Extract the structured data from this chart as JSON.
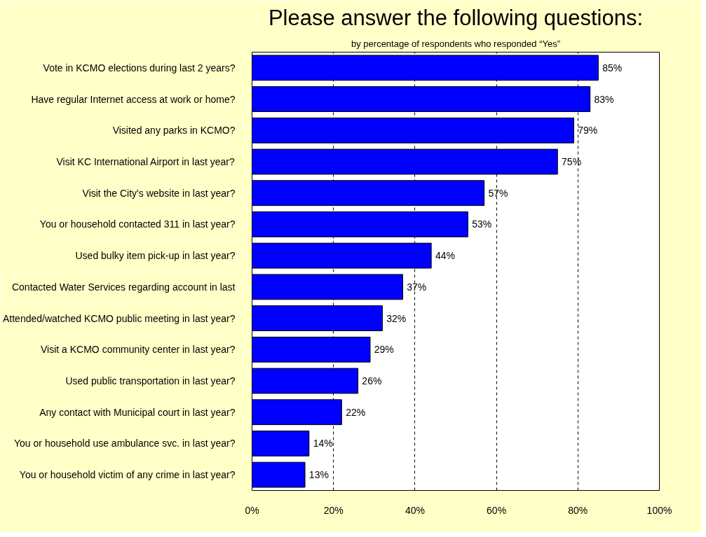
{
  "chart_data": {
    "type": "bar",
    "orientation": "horizontal",
    "title": "Please answer the following questions:",
    "subtitle": "by percentage of respondents who responded “Yes”",
    "categories": [
      "Vote in KCMO elections during last 2 years?",
      "Have regular Internet access at work or home?",
      "Visited any parks in KCMO?",
      "Visit KC International Airport in last year?",
      "Visit the City's website in last year?",
      "You or household contacted 311 in last year?",
      "Used bulky item pick-up in last year?",
      "Contacted Water Services regarding account in last",
      "Attended/watched KCMO public meeting in last year?",
      "Visit a KCMO community center in last year?",
      "Used public transportation in last year?",
      "Any contact with Municipal court in last year?",
      "You or household use ambulance svc. in last year?",
      "You or household victim of any crime in last year?"
    ],
    "values": [
      85,
      83,
      79,
      75,
      57,
      53,
      44,
      37,
      32,
      29,
      26,
      22,
      14,
      13
    ],
    "value_labels": [
      "85%",
      "83%",
      "79%",
      "75%",
      "57%",
      "53%",
      "44%",
      "37%",
      "32%",
      "29%",
      "26%",
      "22%",
      "14%",
      "13%"
    ],
    "color": "#0000ff",
    "xlim": [
      0,
      100
    ],
    "xticks": [
      {
        "value": 0,
        "label": "0%"
      },
      {
        "value": 20,
        "label": "20%"
      },
      {
        "value": 40,
        "label": "40%"
      },
      {
        "value": 60,
        "label": "60%"
      },
      {
        "value": 80,
        "label": "80%"
      },
      {
        "value": 100,
        "label": "100%"
      }
    ],
    "grid": "x"
  }
}
